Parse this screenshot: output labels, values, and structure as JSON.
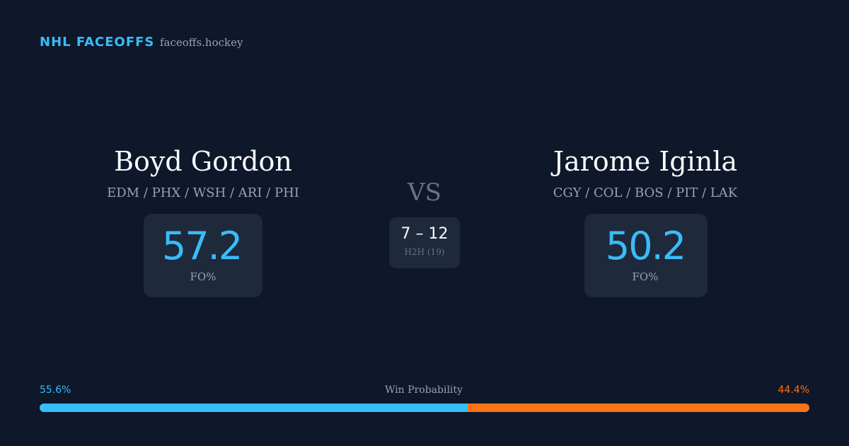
{
  "header": {
    "title": "NHL FACEOFFS",
    "site": "faceoffs.hockey"
  },
  "players": [
    {
      "name": "Boyd Gordon",
      "teams": "EDM / PHX / WSH / ARI / PHI",
      "fo_pct": 57.2,
      "fo_label": "FO%"
    },
    {
      "name": "Jarome Iginla",
      "teams": "CGY / COL / BOS / PIT / LAK",
      "fo_pct": 50.2,
      "fo_label": "FO%"
    }
  ],
  "versus": "VS",
  "h2h": {
    "score": "7 – 12",
    "label": "H2H (19)"
  },
  "win_probability": {
    "title": "Win Probability",
    "values": [
      55.6,
      44.4
    ],
    "value_labels": [
      "55.6%",
      "44.4%"
    ],
    "colors": [
      "#38bdf8",
      "#f97316"
    ]
  }
}
